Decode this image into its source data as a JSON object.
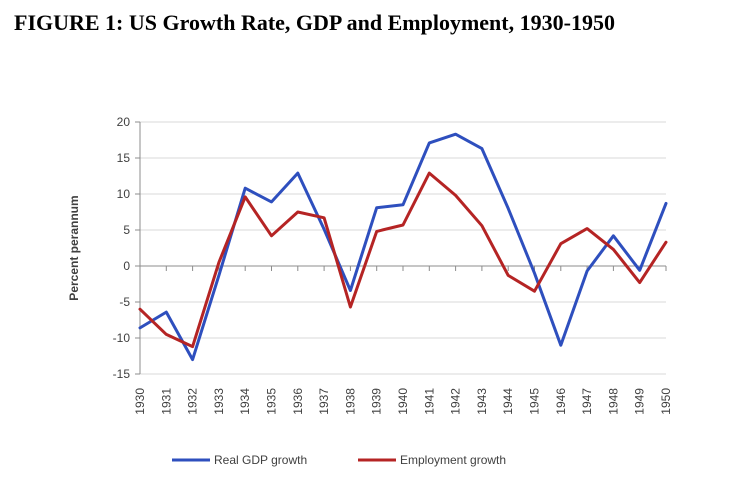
{
  "figure_title": "FIGURE 1: US Growth Rate, GDP and Employment, 1930-1950",
  "colors": {
    "gdp": "#2e4fbe",
    "employment": "#b52424",
    "grid": "#d9d9d9",
    "axis": "#8c8c8c"
  },
  "chart_data": {
    "type": "line",
    "title": "",
    "xlabel": "",
    "ylabel": "Percent perannum",
    "ylim": [
      -15,
      20
    ],
    "yticks": [
      20,
      15,
      10,
      5,
      0,
      -5,
      -10,
      -15
    ],
    "grid": true,
    "legend_position": "bottom",
    "categories": [
      "1930",
      "1931",
      "1932",
      "1933",
      "1934",
      "1935",
      "1936",
      "1937",
      "1938",
      "1939",
      "1940",
      "1941",
      "1942",
      "1943",
      "1944",
      "1945",
      "1946",
      "1947",
      "1948",
      "1949",
      "1950"
    ],
    "series": [
      {
        "name": "Real GDP growth",
        "values": [
          -8.6,
          -6.4,
          -13.0,
          -1.3,
          10.8,
          8.9,
          12.9,
          5.1,
          -3.4,
          8.1,
          8.5,
          17.1,
          18.3,
          16.3,
          8.0,
          -1.0,
          -11.0,
          -0.7,
          4.2,
          -0.6,
          8.7
        ]
      },
      {
        "name": "Employment growth",
        "values": [
          -6.0,
          -9.5,
          -11.2,
          0.5,
          9.6,
          4.2,
          7.5,
          6.7,
          -5.7,
          4.8,
          5.7,
          12.9,
          9.8,
          5.6,
          -1.3,
          -3.5,
          3.1,
          5.2,
          2.3,
          -2.3,
          3.3
        ]
      }
    ]
  }
}
